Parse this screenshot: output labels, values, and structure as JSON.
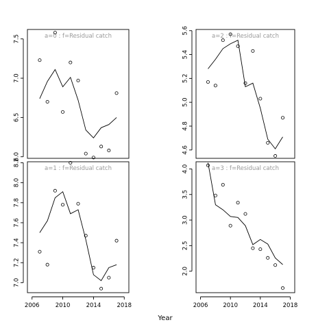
{
  "chart_data": [
    {
      "type": "scatter",
      "title": "a=0  :  f=Residual catch",
      "xlabel": "",
      "ylabel": "",
      "xlim": [
        2005.4,
        2018.6
      ],
      "ylim": [
        5.98,
        7.62
      ],
      "xticks": [],
      "yticks": [
        "6.0",
        "6.5",
        "7.0",
        "7.5"
      ],
      "series": [
        {
          "type": "scatter",
          "x": [
            2007,
            2008,
            2009,
            2010,
            2011,
            2012,
            2013,
            2014,
            2015,
            2016,
            2017
          ],
          "values": [
            7.23,
            6.7,
            7.58,
            6.57,
            7.2,
            6.97,
            6.04,
            5.99,
            6.13,
            6.08,
            6.81
          ]
        },
        {
          "type": "line",
          "x": [
            2007,
            2008,
            2009,
            2010,
            2011,
            2012,
            2013,
            2014,
            2015,
            2016,
            2017
          ],
          "values": [
            6.74,
            6.96,
            7.11,
            6.89,
            7.01,
            6.72,
            6.34,
            6.24,
            6.37,
            6.41,
            6.5
          ]
        }
      ]
    },
    {
      "type": "scatter",
      "title": "a=2  :  f=Residual catch",
      "xlabel": "",
      "ylabel": "",
      "xlim": [
        2005.4,
        2018.6
      ],
      "ylim": [
        4.53,
        5.61
      ],
      "xticks": [],
      "yticks": [
        "4.6",
        "4.8",
        "5.0",
        "5.2",
        "5.4",
        "5.6"
      ],
      "series": [
        {
          "type": "scatter",
          "x": [
            2007,
            2008,
            2009,
            2010,
            2011,
            2012,
            2013,
            2014,
            2015,
            2016,
            2017
          ],
          "values": [
            5.17,
            5.14,
            5.52,
            5.57,
            5.47,
            5.16,
            5.43,
            5.03,
            4.66,
            4.55,
            4.87
          ]
        },
        {
          "type": "line",
          "x": [
            2007,
            2008,
            2009,
            2010,
            2011,
            2012,
            2013,
            2014,
            2015,
            2016,
            2017
          ],
          "values": [
            5.28,
            5.36,
            5.45,
            5.49,
            5.52,
            5.13,
            5.16,
            4.95,
            4.69,
            4.61,
            4.71
          ]
        }
      ]
    },
    {
      "type": "scatter",
      "title": "a=1  :  f=Residual catch",
      "xlabel": "",
      "ylabel": "",
      "xlim": [
        2005.4,
        2018.6
      ],
      "ylim": [
        6.9,
        8.21
      ],
      "xticks": [
        "2006",
        "2010",
        "2014",
        "2018"
      ],
      "yticks": [
        "7.0",
        "7.2",
        "7.4",
        "7.6",
        "7.8",
        "8.0",
        "8.2"
      ],
      "series": [
        {
          "type": "scatter",
          "x": [
            2007,
            2008,
            2009,
            2010,
            2011,
            2012,
            2013,
            2014,
            2015,
            2016,
            2017
          ],
          "values": [
            7.31,
            7.18,
            7.92,
            7.78,
            8.2,
            7.79,
            7.47,
            7.15,
            6.94,
            7.05,
            7.42
          ]
        },
        {
          "type": "line",
          "x": [
            2007,
            2008,
            2009,
            2010,
            2011,
            2012,
            2013,
            2014,
            2015,
            2016,
            2017
          ],
          "values": [
            7.5,
            7.62,
            7.85,
            7.91,
            7.69,
            7.73,
            7.43,
            7.08,
            7.02,
            7.15,
            7.18
          ]
        }
      ]
    },
    {
      "type": "scatter",
      "title": "a=3  :  f=Residual catch",
      "xlabel": "",
      "ylabel": "",
      "xlim": [
        2005.4,
        2018.6
      ],
      "ylim": [
        1.58,
        4.14
      ],
      "xticks": [
        "2006",
        "2010",
        "2014",
        "2018"
      ],
      "yticks": [
        "2.0",
        "2.5",
        "3.0",
        "3.5",
        "4.0"
      ],
      "series": [
        {
          "type": "scatter",
          "x": [
            2007,
            2008,
            2009,
            2010,
            2011,
            2012,
            2013,
            2014,
            2015,
            2016,
            2017
          ],
          "values": [
            4.07,
            3.48,
            3.69,
            2.89,
            3.34,
            3.12,
            2.45,
            2.43,
            2.26,
            2.12,
            1.67
          ]
        },
        {
          "type": "line",
          "x": [
            2007,
            2008,
            2009,
            2010,
            2011,
            2012,
            2013,
            2014,
            2015,
            2016,
            2017
          ],
          "values": [
            4.12,
            3.3,
            3.2,
            3.07,
            3.05,
            2.89,
            2.52,
            2.62,
            2.53,
            2.26,
            2.13
          ]
        }
      ]
    }
  ],
  "figure": {
    "xlabel": "Year"
  }
}
